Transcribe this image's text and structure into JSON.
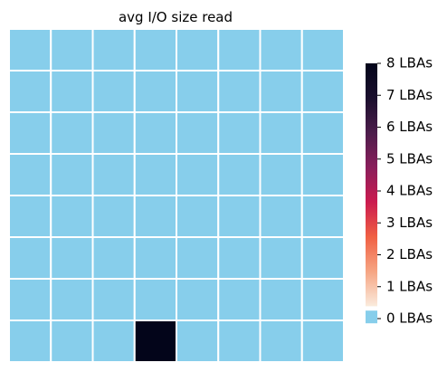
{
  "chart_data": {
    "type": "heatmap",
    "title": "avg I/O size read",
    "rows": 8,
    "cols": 8,
    "values": [
      [
        0,
        0,
        0,
        0,
        0,
        0,
        0,
        0
      ],
      [
        0,
        0,
        0,
        0,
        0,
        0,
        0,
        0
      ],
      [
        0,
        0,
        0,
        0,
        0,
        0,
        0,
        0
      ],
      [
        0,
        0,
        0,
        0,
        0,
        0,
        0,
        0
      ],
      [
        0,
        0,
        0,
        0,
        0,
        0,
        0,
        0
      ],
      [
        0,
        0,
        0,
        0,
        0,
        0,
        0,
        0
      ],
      [
        0,
        0,
        0,
        0,
        0,
        0,
        0,
        0
      ],
      [
        0,
        0,
        0,
        8,
        0,
        0,
        0,
        0
      ]
    ],
    "zero_color": "#87ceeb",
    "grid_line_color": "#ffffff",
    "colorbar": {
      "range": [
        0,
        8
      ],
      "tick_values": [
        0,
        1,
        2,
        3,
        4,
        5,
        6,
        7,
        8
      ],
      "tick_labels": [
        "0 LBAs",
        "1 LBAs",
        "2 LBAs",
        "3 LBAs",
        "4 LBAs",
        "5 LBAs",
        "6 LBAs",
        "7 LBAs",
        "8 LBAs"
      ],
      "zero_swatch_color": "#87ceeb",
      "colormap": [
        "#faebdd",
        "#f6a583",
        "#f06043",
        "#cb1b4f",
        "#8a1e5b",
        "#4c1d4b",
        "#1a0f2d",
        "#03051a"
      ]
    }
  }
}
